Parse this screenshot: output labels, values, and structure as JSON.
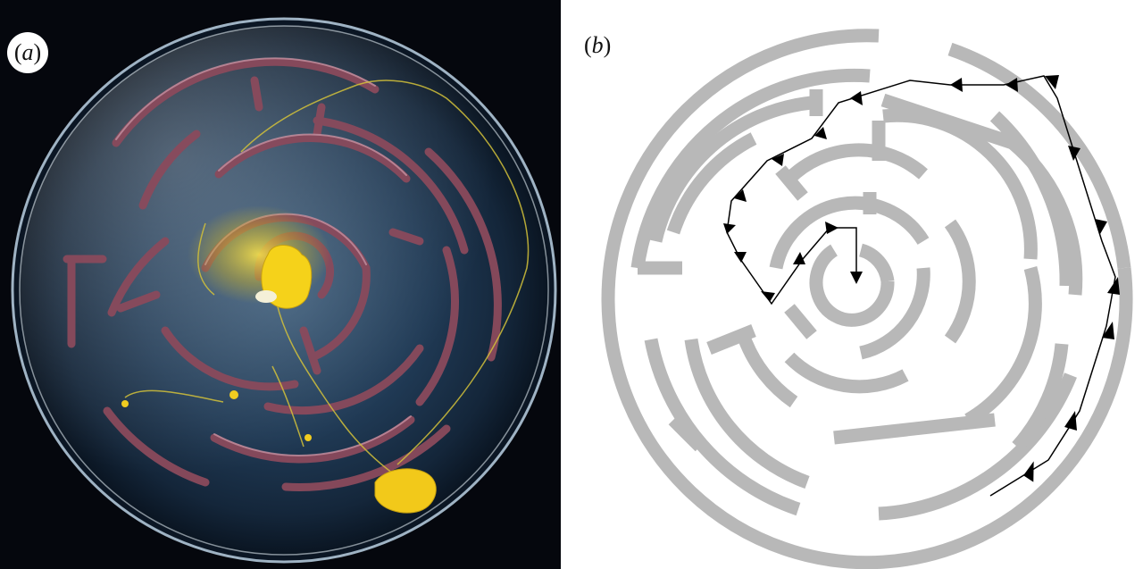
{
  "figure": {
    "panel_a": {
      "label": "a",
      "description_icon": "petri-dish-maze-photo"
    },
    "panel_b": {
      "label": "b",
      "description_icon": "circular-maze-diagram-with-arrows"
    }
  },
  "colors": {
    "photo_background": "#05070d",
    "maze_wall": "#c0c0c0",
    "wall_outline": "#555555",
    "slime_yellow": "#f5d21a",
    "arrow": "#000000"
  }
}
